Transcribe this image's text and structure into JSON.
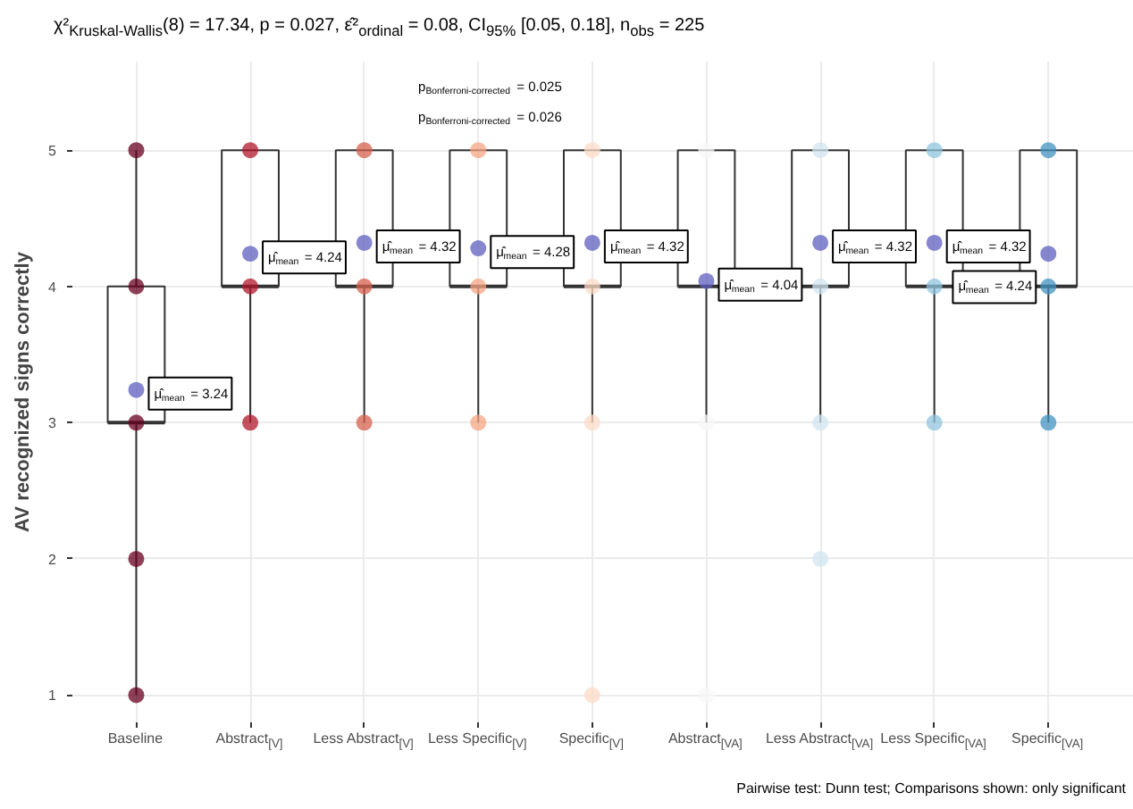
{
  "chart_data": {
    "type": "box",
    "title": "χ²$_{Kruskal-Wallis}$(8) = 17.34, p = 0.027, ε̂²$_{ordinal}$ = 0.08, CI$_{95%}$ [0.05, 0.18], n$_{obs}$ = 225",
    "ylabel": "AV recognized signs correctly",
    "categories": [
      "Baseline",
      "Abstract$_{[V]}$",
      "Less Abstract$_{[V]}$",
      "Less Specific$_{[V]}$",
      "Specific$_{[V]}$",
      "Abstract$_{[VA]}$",
      "Less Abstract$_{[VA]}$",
      "Less Specific$_{[VA]}$",
      "Specific$_{[VA]}$"
    ],
    "boxes": [
      {
        "low": 1,
        "q1": 3,
        "median": 3,
        "q3": 4,
        "high": 5
      },
      {
        "low": 3,
        "q1": 4,
        "median": 4,
        "q3": 5,
        "high": 5
      },
      {
        "low": 3,
        "q1": 4,
        "median": 4,
        "q3": 5,
        "high": 5
      },
      {
        "low": 3,
        "q1": 4,
        "median": 4,
        "q3": 5,
        "high": 5
      },
      {
        "low": 3,
        "q1": 4,
        "median": 4,
        "q3": 5,
        "high": 5
      },
      {
        "low": 3,
        "q1": 4,
        "median": 4,
        "q3": 5,
        "high": 5
      },
      {
        "low": 3,
        "q1": 4,
        "median": 4,
        "q3": 5,
        "high": 5
      },
      {
        "low": 3,
        "q1": 4,
        "median": 4,
        "q3": 5,
        "high": 5
      },
      {
        "low": 3,
        "q1": 4,
        "median": 4,
        "q3": 5,
        "high": 5
      }
    ],
    "series": [
      {
        "type": "scatter",
        "x": [
          "Baseline",
          "Baseline",
          "Baseline",
          "Baseline",
          "Baseline",
          "Abstract$_{[V]}$",
          "Abstract$_{[V]}$",
          "Abstract$_{[V]}$",
          "Less Abstract$_{[V]}$",
          "Less Abstract$_{[V]}$",
          "Less Abstract$_{[V]}$",
          "Less Specific$_{[V]}$",
          "Less Specific$_{[V]}$",
          "Less Specific$_{[V]}$",
          "Specific$_{[V]}$",
          "Specific$_{[V]}$",
          "Specific$_{[V]}$",
          "Specific$_{[V]}$",
          "Abstract$_{[VA]}$",
          "Abstract$_{[VA]}$",
          "Abstract$_{[VA]}$",
          "Abstract$_{[VA]}$",
          "Less Abstract$_{[VA]}$",
          "Less Abstract$_{[VA]}$",
          "Less Abstract$_{[VA]}$",
          "Less Abstract$_{[VA]}$",
          "Less Specific$_{[VA]}$",
          "Less Specific$_{[VA]}$",
          "Less Specific$_{[VA]}$",
          "Specific$_{[VA]}$",
          "Specific$_{[VA]}$",
          "Specific$_{[VA]}$"
        ],
        "values": [
          1,
          2,
          3,
          4,
          5,
          3,
          4,
          5,
          3,
          4,
          5,
          3,
          4,
          5,
          1,
          3,
          4,
          5,
          1,
          3,
          null,
          5,
          2,
          3,
          4,
          5,
          3,
          4,
          5,
          3,
          4,
          5
        ],
        "colors": [
          "#67001f",
          "#67001f",
          "#67001f",
          "#67001f",
          "#67001f",
          "#b2182b",
          "#b2182b",
          "#b2182b",
          "#d6604d",
          "#d6604d",
          "#d6604d",
          "#f4a582",
          "#f4a582",
          "#f4a582",
          "#fddbc7",
          "#fddbc7",
          "#fddbc7",
          "#fddbc7",
          "#f7f7f7",
          "#f7f7f7",
          "#f7f7f7",
          "#f7f7f7",
          "#d1e5f0",
          "#d1e5f0",
          "#d1e5f0",
          "#d1e5f0",
          "#92c5de",
          "#92c5de",
          "#92c5de",
          "#4393c3",
          "#4393c3",
          "#4393c3"
        ]
      },
      {
        "type": "scatter",
        "color": "#5d5fbd",
        "x": [
          "Baseline",
          "Abstract$_{[V]}$",
          "Less Abstract$_{[V]}$",
          "Less Specific$_{[V]}$",
          "Specific$_{[V]}$",
          "Abstract$_{[VA]}$",
          "Less Abstract$_{[VA]}$",
          "Less Specific$_{[VA]}$",
          "Specific$_{[VA]}$"
        ],
        "values": [
          3.24,
          4.24,
          4.32,
          4.28,
          4.32,
          4.04,
          4.32,
          4.32,
          4.24
        ],
        "value_labels": [
          "μ̂$_{mean}$ = 3.24",
          "μ̂$_{mean}$ = 4.24",
          "μ̂$_{mean}$ = 4.32",
          "μ̂$_{mean}$ = 4.28",
          "μ̂$_{mean}$ = 4.32",
          "μ̂$_{mean}$ = 4.04",
          "μ̂$_{mean}$ = 4.32",
          "μ̂$_{mean}$ = 4.32",
          "μ̂$_{mean}$ = 4.24"
        ]
      }
    ],
    "ylim": [
      0.8,
      5.65
    ],
    "yticks": [
      1,
      2,
      3,
      4,
      5
    ],
    "grid": true,
    "annotations": [
      "p$_{Bonferroni-corrected}$ = 0.025",
      "p$_{Bonferroni-corrected}$ = 0.026",
      "Pairwise test: Dunn test; Comparisons shown: only significant"
    ]
  }
}
